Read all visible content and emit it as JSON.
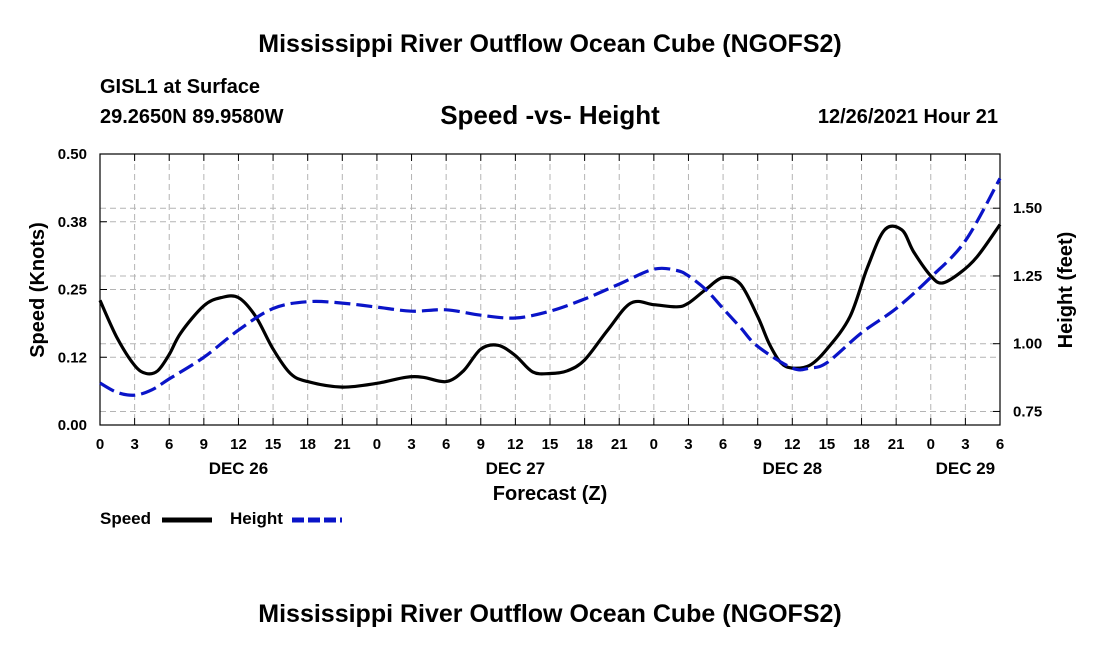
{
  "header": {
    "main_title": "Mississippi River Outflow Ocean Cube (NGOFS2)",
    "station_name": "GISL1 at Surface",
    "station_coords": "29.2650N  89.9580W",
    "subtitle": "Speed -vs- Height",
    "timestamp": "12/26/2021 Hour 21"
  },
  "legend": {
    "speed_label": "Speed",
    "height_label": "Height"
  },
  "footer": {
    "repeated_title": "Mississippi River Outflow Ocean Cube (NGOFS2)"
  },
  "colors": {
    "speed": "#000000",
    "height": "#0a14c8",
    "grid": "#b4b4b4"
  },
  "chart_data": {
    "type": "line",
    "title": "Speed -vs- Height",
    "xlabel": "Forecast (Z)",
    "ylabel_left": "Speed (Knots)",
    "ylabel_right": "Height (feet)",
    "x_unit": "hours from DEC 26 00Z",
    "xlim": [
      0,
      78
    ],
    "ylim_left": [
      0,
      0.5
    ],
    "ylim_right": [
      0.7,
      1.7
    ],
    "x_ticks": [
      0,
      3,
      6,
      9,
      12,
      15,
      18,
      21,
      24,
      27,
      30,
      33,
      36,
      39,
      42,
      45,
      48,
      51,
      54,
      57,
      60,
      63,
      66,
      69,
      72,
      75,
      78
    ],
    "x_tick_labels": [
      "0",
      "3",
      "6",
      "9",
      "12",
      "15",
      "18",
      "21",
      "0",
      "3",
      "6",
      "9",
      "12",
      "15",
      "18",
      "21",
      "0",
      "3",
      "6",
      "9",
      "12",
      "15",
      "18",
      "21",
      "0",
      "3",
      "6"
    ],
    "date_labels": [
      {
        "x": 12,
        "label": "DEC 26"
      },
      {
        "x": 36,
        "label": "DEC 27"
      },
      {
        "x": 60,
        "label": "DEC 28"
      },
      {
        "x": 75,
        "label": "DEC 29"
      }
    ],
    "y_left_ticks": [
      0,
      0.125,
      0.25,
      0.375,
      0.5
    ],
    "y_left_tick_labels": [
      "0.00",
      "0.12",
      "0.25",
      "0.38",
      "0.50"
    ],
    "y_right_ticks": [
      0.75,
      1.0,
      1.25,
      1.5
    ],
    "y_right_tick_labels": [
      "0.75",
      "1.00",
      "1.25",
      "1.50"
    ],
    "grid": true,
    "series": [
      {
        "name": "Speed",
        "axis": "left",
        "style": "solid",
        "x": [
          0,
          1.5,
          3,
          4,
          5,
          6,
          7,
          9,
          10.5,
          12,
          13.5,
          15,
          16.5,
          18,
          21,
          24,
          26.5,
          28,
          30,
          31.5,
          33,
          34.5,
          36,
          37.5,
          39,
          40.5,
          42,
          44,
          46,
          48,
          50,
          51,
          52.5,
          54,
          55.5,
          57,
          58,
          59,
          60,
          61.5,
          63,
          65,
          66.5,
          68,
          69.5,
          70.5,
          72,
          73,
          74.5,
          76,
          78
        ],
        "values": [
          0.23,
          0.16,
          0.11,
          0.095,
          0.1,
          0.13,
          0.17,
          0.22,
          0.235,
          0.235,
          0.2,
          0.14,
          0.095,
          0.08,
          0.07,
          0.077,
          0.088,
          0.088,
          0.08,
          0.1,
          0.14,
          0.147,
          0.128,
          0.098,
          0.095,
          0.1,
          0.12,
          0.175,
          0.225,
          0.222,
          0.218,
          0.225,
          0.25,
          0.272,
          0.26,
          0.2,
          0.15,
          0.115,
          0.105,
          0.11,
          0.14,
          0.2,
          0.29,
          0.36,
          0.36,
          0.32,
          0.275,
          0.262,
          0.28,
          0.31,
          0.37
        ]
      },
      {
        "name": "Height",
        "axis": "right",
        "style": "dashed",
        "x": [
          0,
          1.5,
          3,
          4.5,
          6,
          9,
          12,
          15,
          18,
          21,
          24,
          27,
          30,
          33,
          36,
          39,
          42,
          45,
          48,
          50,
          51,
          52.5,
          54,
          55.5,
          57,
          60,
          61.5,
          63,
          66,
          69,
          72,
          75,
          78
        ],
        "values": [
          0.855,
          0.82,
          0.81,
          0.83,
          0.87,
          0.95,
          1.05,
          1.13,
          1.155,
          1.15,
          1.135,
          1.12,
          1.125,
          1.105,
          1.095,
          1.12,
          1.165,
          1.22,
          1.275,
          1.27,
          1.25,
          1.2,
          1.13,
          1.06,
          0.99,
          0.91,
          0.91,
          0.93,
          1.04,
          1.13,
          1.245,
          1.38,
          1.61
        ]
      }
    ]
  }
}
